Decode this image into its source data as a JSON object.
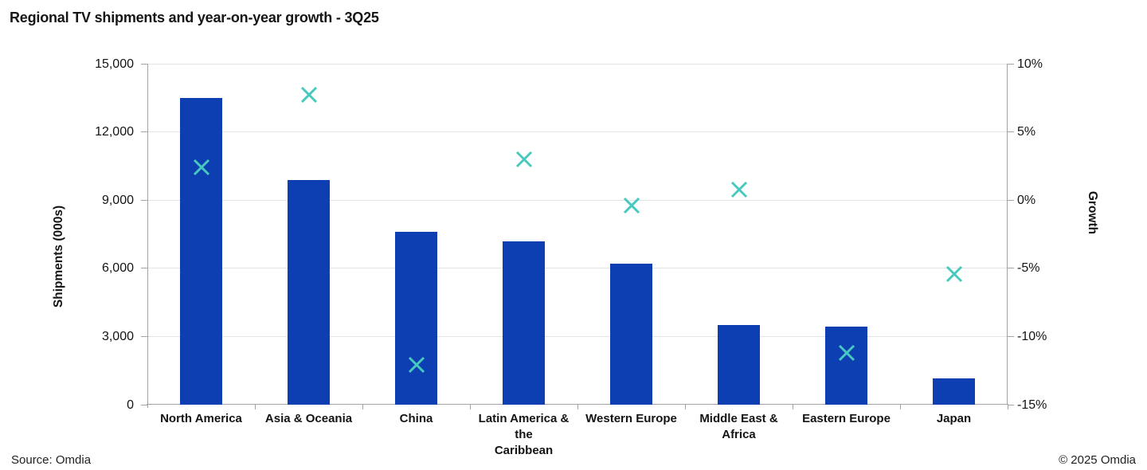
{
  "title": "Regional TV shipments and year-on-year growth - 3Q25",
  "footer": {
    "source": "Source: Omdia",
    "copyright": "© 2025 Omdia"
  },
  "chart_data": {
    "type": "bar",
    "subtype": "bar-with-scatter-overlay",
    "title": "Regional TV shipments and year-on-year growth - 3Q25",
    "categories": [
      "North America",
      "Asia & Oceania",
      "China",
      "Latin America & the Caribbean",
      "Western Europe",
      "Middle East & Africa",
      "Eastern Europe",
      "Japan"
    ],
    "category_label_lines": [
      [
        "North America"
      ],
      [
        "Asia & Oceania"
      ],
      [
        "China"
      ],
      [
        "Latin America & the",
        "Caribbean"
      ],
      [
        "Western Europe"
      ],
      [
        "Middle East &",
        "Africa"
      ],
      [
        "Eastern Europe"
      ],
      [
        "Japan"
      ]
    ],
    "series": [
      {
        "name": "Shipments (000s)",
        "type": "bar",
        "axis": "left",
        "color": "#0d3fb2",
        "values": [
          13500,
          9900,
          7600,
          7200,
          6200,
          3500,
          3450,
          1150
        ]
      },
      {
        "name": "Growth",
        "type": "scatter",
        "marker": "x",
        "axis": "right",
        "color": "#47c9bf",
        "values": [
          2.4,
          7.7,
          -12.1,
          3.0,
          -0.4,
          0.8,
          -11.2,
          -5.4
        ]
      }
    ],
    "left_axis": {
      "label": "Shipments (000s)",
      "min": 0,
      "max": 15000,
      "ticks": [
        {
          "label": "15,000",
          "value": 15000
        },
        {
          "label": "12,000",
          "value": 12000
        },
        {
          "label": "9,000",
          "value": 9000
        },
        {
          "label": "6,000",
          "value": 6000
        },
        {
          "label": "3,000",
          "value": 3000
        },
        {
          "label": "0",
          "value": 0
        }
      ]
    },
    "right_axis": {
      "label": "Growth",
      "min": -15,
      "max": 10,
      "ticks": [
        {
          "label": "10%",
          "value": 10
        },
        {
          "label": "5%",
          "value": 5
        },
        {
          "label": "0%",
          "value": 0
        },
        {
          "label": "-5%",
          "value": -5
        },
        {
          "label": "-10%",
          "value": -10
        },
        {
          "label": "-15%",
          "value": -15
        }
      ]
    },
    "grid": true,
    "legend": "none",
    "colors": {
      "bar": "#0d3fb2",
      "marker": "#47c9bf",
      "gridline": "#e4e4e4",
      "axis": "#a3a3a3",
      "text": "#141414"
    }
  }
}
